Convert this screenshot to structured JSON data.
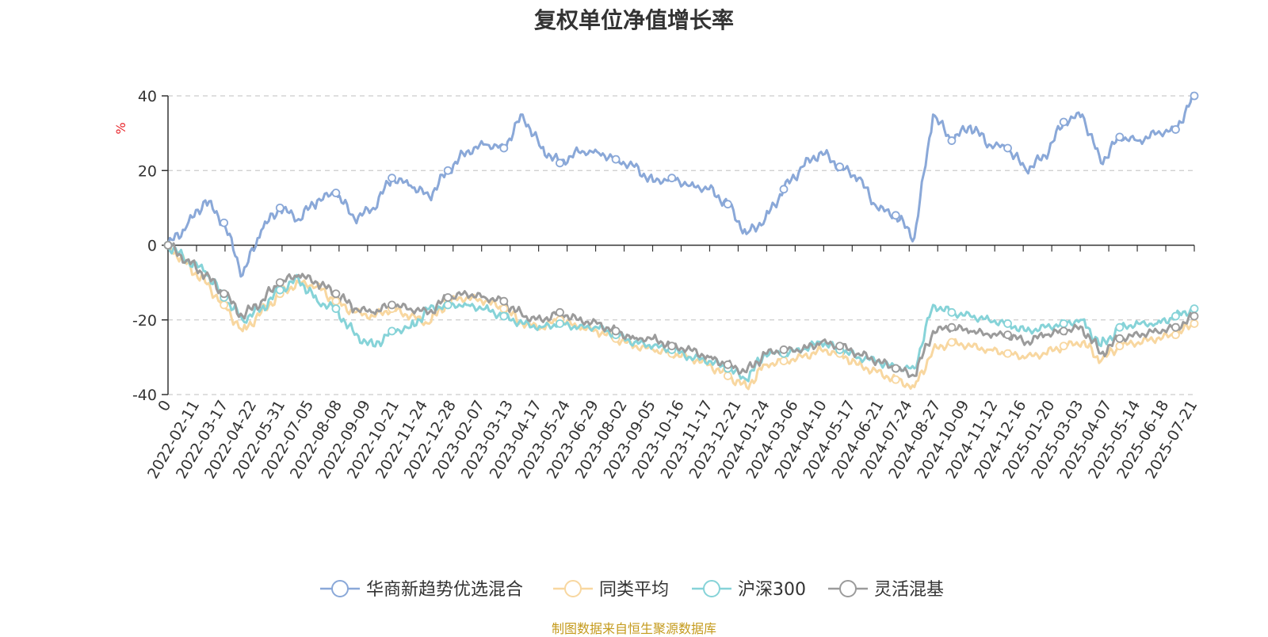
{
  "chart_data": {
    "type": "line",
    "title": "复权单位净值增长率",
    "y_unit": "%",
    "ylim": [
      -40,
      40
    ],
    "y_ticks": [
      40,
      20,
      0,
      -20,
      -40
    ],
    "grid": "dashed horizontal",
    "legend_position": "bottom",
    "source_note": "制图数据来自恒生聚源数据库",
    "x_ticks": [
      "0",
      "2022-02-11",
      "2022-03-17",
      "2022-04-22",
      "2022-05-31",
      "2022-07-05",
      "2022-08-08",
      "2022-09-09",
      "2022-10-21",
      "2022-11-24",
      "2022-12-28",
      "2023-02-07",
      "2023-03-13",
      "2023-04-17",
      "2023-05-24",
      "2023-06-29",
      "2023-08-02",
      "2023-09-05",
      "2023-10-16",
      "2023-11-17",
      "2023-12-21",
      "2024-01-24",
      "2024-03-06",
      "2024-04-10",
      "2024-05-17",
      "2024-06-21",
      "2024-07-24",
      "2024-08-27",
      "2024-10-09",
      "2024-11-12",
      "2024-12-16",
      "2025-01-20",
      "2025-03-03",
      "2025-04-07",
      "2025-05-14",
      "2025-06-18",
      "2025-07-21"
    ],
    "series": [
      {
        "name": "华商新趋势优选混合",
        "color": "#8aa8d8",
        "values": [
          0,
          5,
          12,
          6,
          -8,
          4,
          10,
          7,
          12,
          14,
          7,
          10,
          18,
          16,
          13,
          20,
          25,
          27,
          26,
          35,
          26,
          22,
          25,
          25,
          23,
          21,
          17,
          18,
          16,
          15,
          11,
          3,
          7,
          15,
          21,
          25,
          21,
          18,
          10,
          8,
          2,
          35,
          28,
          32,
          27,
          26,
          20,
          24,
          33,
          35,
          22,
          29,
          28,
          30,
          31,
          40
        ]
      },
      {
        "name": "同类平均",
        "color": "#f8d7a0",
        "values": [
          0,
          -5,
          -10,
          -16,
          -23,
          -18,
          -13,
          -10,
          -11,
          -15,
          -18,
          -19,
          -17,
          -19,
          -21,
          -15,
          -14,
          -15,
          -17,
          -21,
          -22,
          -20,
          -22,
          -23,
          -25,
          -27,
          -28,
          -29,
          -30,
          -32,
          -35,
          -38,
          -32,
          -31,
          -30,
          -28,
          -29,
          -32,
          -34,
          -36,
          -38,
          -28,
          -26,
          -27,
          -28,
          -29,
          -30,
          -29,
          -27,
          -26,
          -31,
          -27,
          -26,
          -25,
          -24,
          -21
        ]
      },
      {
        "name": "沪深300",
        "color": "#86d3d8",
        "values": [
          0,
          -4,
          -7,
          -14,
          -20,
          -17,
          -12,
          -9,
          -15,
          -17,
          -24,
          -27,
          -23,
          -22,
          -17,
          -16,
          -16,
          -17,
          -19,
          -21,
          -22,
          -21,
          -22,
          -22,
          -24,
          -26,
          -27,
          -28,
          -30,
          -31,
          -33,
          -36,
          -29,
          -29,
          -28,
          -26,
          -28,
          -30,
          -31,
          -33,
          -33,
          -16,
          -18,
          -19,
          -20,
          -21,
          -23,
          -22,
          -21,
          -20,
          -27,
          -22,
          -21,
          -21,
          -19,
          -17
        ]
      },
      {
        "name": "灵活混基",
        "color": "#9b9b9b",
        "values": [
          0,
          -4,
          -8,
          -13,
          -19,
          -15,
          -10,
          -8,
          -10,
          -13,
          -17,
          -18,
          -16,
          -17,
          -18,
          -14,
          -13,
          -14,
          -15,
          -19,
          -20,
          -18,
          -20,
          -21,
          -23,
          -25,
          -25,
          -27,
          -28,
          -30,
          -32,
          -34,
          -29,
          -28,
          -28,
          -26,
          -27,
          -29,
          -31,
          -33,
          -35,
          -23,
          -22,
          -23,
          -24,
          -24,
          -26,
          -24,
          -23,
          -22,
          -29,
          -25,
          -24,
          -23,
          -22,
          -19
        ]
      }
    ]
  }
}
